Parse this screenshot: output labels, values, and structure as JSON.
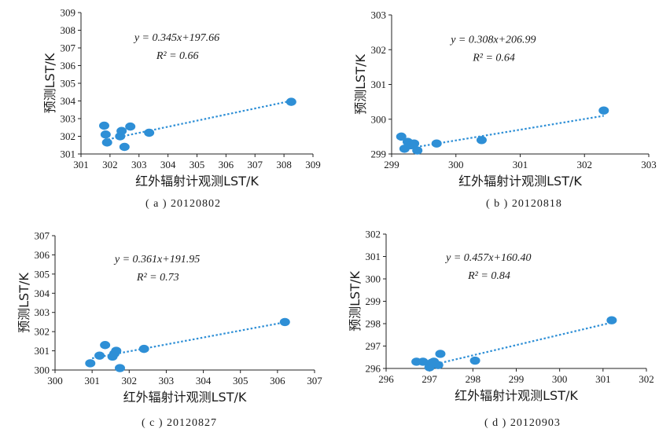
{
  "chart_data": [
    {
      "type": "scatter",
      "caption": "( a ) 20120802",
      "xlabel": "红外辐射计观测LST/K",
      "ylabel": "预测LST/K",
      "xlim": [
        301,
        309
      ],
      "ylim": [
        301,
        309
      ],
      "xticks": [
        301,
        302,
        303,
        304,
        305,
        306,
        307,
        308,
        309
      ],
      "yticks": [
        301,
        302,
        303,
        304,
        305,
        306,
        307,
        308,
        309
      ],
      "equation": "y = 0.345x+197.66",
      "r2": "R² = 0.66",
      "x": [
        301.8,
        301.85,
        301.9,
        302.35,
        302.4,
        302.5,
        302.7,
        303.35,
        308.25
      ],
      "y": [
        302.6,
        302.1,
        301.65,
        302.0,
        302.3,
        301.4,
        302.55,
        302.2,
        303.95
      ],
      "trend": {
        "slope": 0.345,
        "intercept": 197.66,
        "x_range": [
          301.8,
          308.25
        ]
      },
      "marker_color": "#2e8fd6",
      "line_color": "#2e8fd6"
    },
    {
      "type": "scatter",
      "caption": "( b ) 20120818",
      "xlabel": "红外辐射计观测LST/K",
      "ylabel": "预测LST/K",
      "xlim": [
        299,
        303
      ],
      "ylim": [
        299,
        303
      ],
      "xticks": [
        299,
        300,
        301,
        302,
        303
      ],
      "yticks": [
        299,
        300,
        301,
        302,
        303
      ],
      "equation": "y = 0.308x+206.99",
      "r2": "R² = 0.64",
      "x": [
        299.15,
        299.2,
        299.25,
        299.3,
        299.35,
        299.4,
        299.7,
        300.4,
        302.3
      ],
      "y": [
        299.5,
        299.15,
        299.35,
        299.25,
        299.3,
        299.1,
        299.3,
        299.4,
        300.25
      ],
      "trend": {
        "slope": 0.308,
        "intercept": 206.99,
        "x_range": [
          299.2,
          302.3
        ]
      },
      "marker_color": "#2e8fd6",
      "line_color": "#2e8fd6"
    },
    {
      "type": "scatter",
      "caption": "( c ) 20120827",
      "xlabel": "红外辐射计观测LST/K",
      "ylabel": "预测LST/K",
      "xlim": [
        300,
        307
      ],
      "ylim": [
        300,
        307
      ],
      "xticks": [
        300,
        301,
        302,
        303,
        304,
        305,
        306,
        307
      ],
      "yticks": [
        300,
        301,
        302,
        303,
        304,
        305,
        306,
        307
      ],
      "equation": "y = 0.361x+191.95",
      "r2": "R² = 0.73",
      "x": [
        300.95,
        301.2,
        301.35,
        301.55,
        301.6,
        301.65,
        301.75,
        302.4,
        306.2
      ],
      "y": [
        300.35,
        300.75,
        301.3,
        300.7,
        300.85,
        301.0,
        300.1,
        301.1,
        302.5
      ],
      "trend": {
        "slope": 0.361,
        "intercept": 191.95,
        "x_range": [
          301.0,
          306.2
        ]
      },
      "marker_color": "#2e8fd6",
      "line_color": "#2e8fd6"
    },
    {
      "type": "scatter",
      "caption": "( d ) 20120903",
      "xlabel": "红外辐射计观测LST/K",
      "ylabel": "预测LST/K",
      "xlim": [
        296,
        302
      ],
      "ylim": [
        296,
        302
      ],
      "xticks": [
        296,
        297,
        298,
        299,
        300,
        301,
        302
      ],
      "yticks": [
        296,
        297,
        298,
        299,
        300,
        301,
        302
      ],
      "equation": "y = 0.457x+160.40",
      "r2": "R² = 0.84",
      "x": [
        296.7,
        296.85,
        297.0,
        297.05,
        297.2,
        297.25,
        297.1,
        298.05,
        301.2
      ],
      "y": [
        296.3,
        296.3,
        296.05,
        296.25,
        296.15,
        296.65,
        296.3,
        296.35,
        298.15
      ],
      "trend": {
        "slope": 0.457,
        "intercept": 160.4,
        "x_range": [
          296.9,
          301.2
        ]
      },
      "marker_color": "#2e8fd6",
      "line_color": "#2e8fd6"
    }
  ]
}
